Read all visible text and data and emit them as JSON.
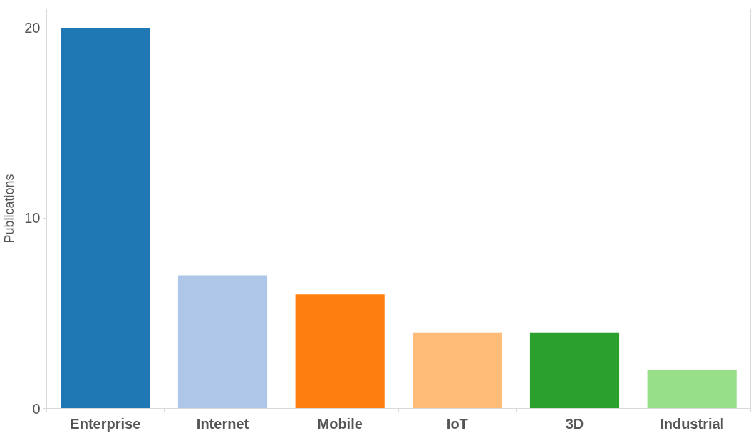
{
  "chart_data": {
    "type": "bar",
    "ylabel": "Publications",
    "categories": [
      "Enterprise",
      "Internet",
      "Mobile",
      "IoT",
      "3D",
      "Industrial"
    ],
    "values": [
      20,
      7,
      6,
      4,
      4,
      2
    ],
    "colors": [
      "#1f77b4",
      "#aec7e8",
      "#ff7f0e",
      "#ffbb78",
      "#2ca02c",
      "#98df8a"
    ],
    "ylim": [
      0,
      21
    ],
    "yticks": [
      0,
      10,
      20
    ]
  }
}
